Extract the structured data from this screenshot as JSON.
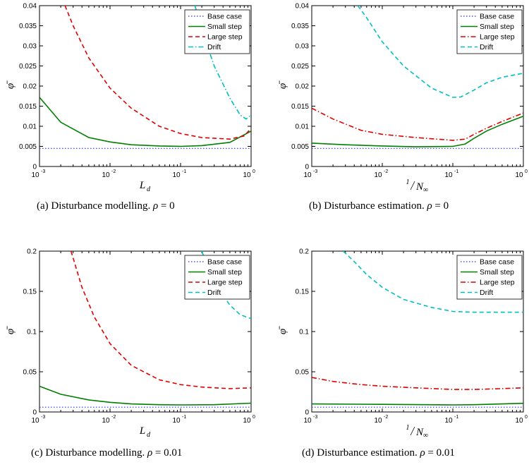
{
  "colors": {
    "base": "#3030ff",
    "small": "#008000",
    "large": "#e00000",
    "drift": "#00bfbf"
  },
  "legend_labels": [
    "Base case",
    "Small step",
    "Large step",
    "Drift"
  ],
  "y_axis_label": "φ̄",
  "x_axis_label_a": "L",
  "x_axis_label_a_sub": "d",
  "x_axis_label_b_num": "1",
  "x_axis_label_b_den": "N",
  "x_axis_label_b_den_sub": "∞",
  "captions": [
    {
      "text": "(a) Disturbance modelling. ",
      "var": "ρ",
      "rest": " = 0"
    },
    {
      "text": "(b) Disturbance estimation. ",
      "var": "ρ",
      "rest": " = 0"
    },
    {
      "text": "(c) Disturbance modelling. ",
      "var": "ρ",
      "rest": " = 0.01"
    },
    {
      "text": "(d) Disturbance estimation. ",
      "var": "ρ",
      "rest": " = 0.01"
    }
  ],
  "chart_data": [
    {
      "type": "line",
      "panel": "a",
      "xscale": "log",
      "xlim": [
        0.001,
        1
      ],
      "ylim": [
        0,
        0.04
      ],
      "yticks": [
        "0",
        "0.005",
        "0.01",
        "0.015",
        "0.02",
        "0.025",
        "0.03",
        "0.035",
        "0.04"
      ],
      "xticks": [
        "10^-3",
        "10^-2",
        "10^-1",
        "10^0"
      ],
      "xlabel": "L_d",
      "ylabel": "φ̄",
      "series": [
        {
          "name": "Base case",
          "style": "dotted",
          "color": "base",
          "x": [
            0.001,
            1
          ],
          "y": [
            0.0045,
            0.0045
          ]
        },
        {
          "name": "Small step",
          "style": "solid",
          "color": "small",
          "x": [
            0.001,
            0.002,
            0.005,
            0.01,
            0.02,
            0.05,
            0.1,
            0.2,
            0.5,
            1
          ],
          "y": [
            0.0172,
            0.011,
            0.0072,
            0.0061,
            0.0054,
            0.0051,
            0.005,
            0.0052,
            0.006,
            0.0088
          ]
        },
        {
          "name": "Large step",
          "style": "dashed",
          "color": "large",
          "x": [
            0.0023,
            0.003,
            0.005,
            0.01,
            0.02,
            0.05,
            0.1,
            0.2,
            0.5,
            0.8,
            1
          ],
          "y": [
            0.04,
            0.035,
            0.027,
            0.0195,
            0.0145,
            0.01,
            0.0082,
            0.0072,
            0.0068,
            0.0076,
            0.0095
          ]
        },
        {
          "name": "Drift",
          "style": "dashdot",
          "color": "drift",
          "x": [
            0.16,
            0.2,
            0.3,
            0.5,
            0.7,
            0.85,
            1
          ],
          "y": [
            0.04,
            0.034,
            0.025,
            0.017,
            0.0128,
            0.0118,
            0.0128
          ]
        }
      ]
    },
    {
      "type": "line",
      "panel": "b",
      "xscale": "log",
      "xlim": [
        0.001,
        1
      ],
      "ylim": [
        0,
        0.04
      ],
      "yticks": [
        "0",
        "0.005",
        "0.01",
        "0.015",
        "0.02",
        "0.025",
        "0.03",
        "0.035",
        "0.04"
      ],
      "xticks": [
        "10^-3",
        "10^-2",
        "10^-1",
        "10^0"
      ],
      "xlabel": "1/N_∞",
      "ylabel": "φ̄",
      "series": [
        {
          "name": "Base case",
          "style": "dotted",
          "color": "base",
          "x": [
            0.001,
            1
          ],
          "y": [
            0.0045,
            0.0045
          ]
        },
        {
          "name": "Small step",
          "style": "solid",
          "color": "small",
          "x": [
            0.001,
            0.003,
            0.01,
            0.03,
            0.1,
            0.15,
            0.2,
            0.3,
            0.5,
            1
          ],
          "y": [
            0.0058,
            0.0054,
            0.0051,
            0.0049,
            0.005,
            0.0056,
            0.007,
            0.0088,
            0.0105,
            0.0125
          ]
        },
        {
          "name": "Large step",
          "style": "dashdot",
          "color": "large",
          "x": [
            0.001,
            0.002,
            0.005,
            0.01,
            0.03,
            0.1,
            0.15,
            0.2,
            0.3,
            0.5,
            1
          ],
          "y": [
            0.0145,
            0.0118,
            0.009,
            0.008,
            0.0072,
            0.0065,
            0.0068,
            0.008,
            0.0095,
            0.0112,
            0.0133
          ]
        },
        {
          "name": "Drift",
          "style": "dashed",
          "color": "drift",
          "x": [
            0.0045,
            0.006,
            0.01,
            0.02,
            0.05,
            0.1,
            0.13,
            0.2,
            0.3,
            0.5,
            1
          ],
          "y": [
            0.04,
            0.037,
            0.031,
            0.025,
            0.0195,
            0.0172,
            0.0173,
            0.019,
            0.0208,
            0.0222,
            0.0232
          ]
        }
      ]
    },
    {
      "type": "line",
      "panel": "c",
      "xscale": "log",
      "xlim": [
        0.001,
        1
      ],
      "ylim": [
        0,
        0.2
      ],
      "yticks": [
        "0",
        "0.05",
        "0.1",
        "0.15",
        "0.2"
      ],
      "xticks": [
        "10^-3",
        "10^-2",
        "10^-1",
        "10^0"
      ],
      "xlabel": "L_d",
      "ylabel": "φ̄",
      "series": [
        {
          "name": "Base case",
          "style": "dotted",
          "color": "base",
          "x": [
            0.001,
            1
          ],
          "y": [
            0.006,
            0.006
          ]
        },
        {
          "name": "Small step",
          "style": "solid",
          "color": "small",
          "x": [
            0.001,
            0.002,
            0.005,
            0.01,
            0.02,
            0.05,
            0.1,
            0.3,
            1
          ],
          "y": [
            0.032,
            0.022,
            0.015,
            0.012,
            0.01,
            0.009,
            0.0088,
            0.009,
            0.011
          ]
        },
        {
          "name": "Large step",
          "style": "dashed",
          "color": "large",
          "x": [
            0.0028,
            0.004,
            0.006,
            0.01,
            0.02,
            0.05,
            0.1,
            0.2,
            0.5,
            1
          ],
          "y": [
            0.2,
            0.155,
            0.118,
            0.085,
            0.058,
            0.04,
            0.034,
            0.031,
            0.029,
            0.03
          ]
        },
        {
          "name": "Drift",
          "style": "dashed",
          "color": "drift",
          "x": [
            0.2,
            0.3,
            0.5,
            0.7,
            1
          ],
          "y": [
            0.2,
            0.16,
            0.133,
            0.121,
            0.116
          ]
        }
      ]
    },
    {
      "type": "line",
      "panel": "d",
      "xscale": "log",
      "xlim": [
        0.001,
        1
      ],
      "ylim": [
        0,
        0.2
      ],
      "yticks": [
        "0",
        "0.05",
        "0.1",
        "0.15",
        "0.2"
      ],
      "xticks": [
        "10^-3",
        "10^-2",
        "10^-1",
        "10^0"
      ],
      "xlabel": "1/N_∞",
      "ylabel": "φ̄",
      "series": [
        {
          "name": "Base case",
          "style": "dotted",
          "color": "base",
          "x": [
            0.001,
            1
          ],
          "y": [
            0.006,
            0.006
          ]
        },
        {
          "name": "Small step",
          "style": "solid",
          "color": "small",
          "x": [
            0.001,
            0.01,
            0.1,
            0.2,
            0.5,
            1
          ],
          "y": [
            0.01,
            0.0095,
            0.0088,
            0.009,
            0.01,
            0.0108
          ]
        },
        {
          "name": "Large step",
          "style": "dashdot",
          "color": "large",
          "x": [
            0.001,
            0.002,
            0.005,
            0.01,
            0.03,
            0.1,
            0.2,
            0.5,
            1
          ],
          "y": [
            0.043,
            0.038,
            0.034,
            0.032,
            0.03,
            0.028,
            0.028,
            0.029,
            0.03
          ]
        },
        {
          "name": "Drift",
          "style": "dashed",
          "color": "drift",
          "x": [
            0.0028,
            0.004,
            0.006,
            0.01,
            0.02,
            0.05,
            0.1,
            0.2,
            0.5,
            1
          ],
          "y": [
            0.2,
            0.187,
            0.171,
            0.155,
            0.14,
            0.13,
            0.125,
            0.124,
            0.124,
            0.124
          ]
        }
      ]
    }
  ]
}
